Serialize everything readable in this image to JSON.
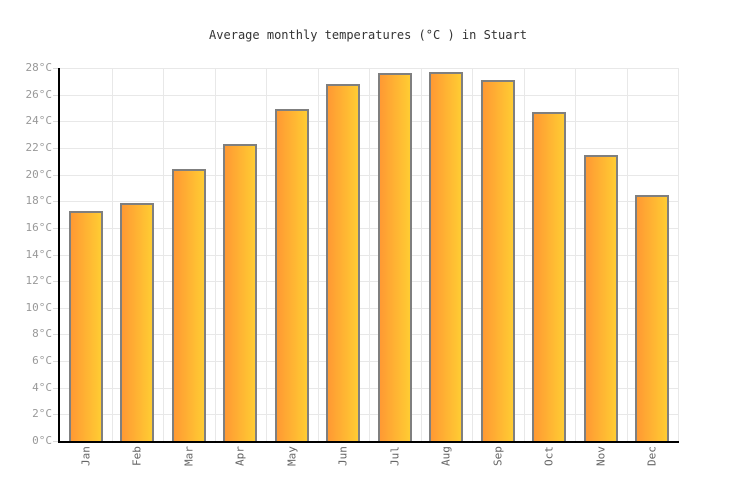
{
  "chart": {
    "title": "Average monthly temperatures (°C ) in Stuart"
  },
  "chart_data": {
    "type": "bar",
    "title": "Average monthly temperatures (°C ) in Stuart",
    "categories": [
      "Jan",
      "Feb",
      "Mar",
      "Apr",
      "May",
      "Jun",
      "Jul",
      "Aug",
      "Sep",
      "Oct",
      "Nov",
      "Dec"
    ],
    "values": [
      17.3,
      17.9,
      20.4,
      22.3,
      24.9,
      26.8,
      27.6,
      27.7,
      27.1,
      24.7,
      21.5,
      18.5
    ],
    "xlabel": "",
    "ylabel": "",
    "ylim": [
      0,
      28
    ],
    "ytick_step": 2,
    "ytick_suffix": "°C",
    "grid": true,
    "legend": false,
    "colors": {
      "bar_gradient_start": "#ff9933",
      "bar_gradient_end": "#ffcc33",
      "bar_border": "#7f7f7f",
      "grid_line": "#e8e8e8",
      "axis_line": "#000000",
      "y_tick_label": "#999999",
      "x_tick_label": "#666666",
      "title_color": "#333333",
      "background": "#ffffff"
    }
  }
}
